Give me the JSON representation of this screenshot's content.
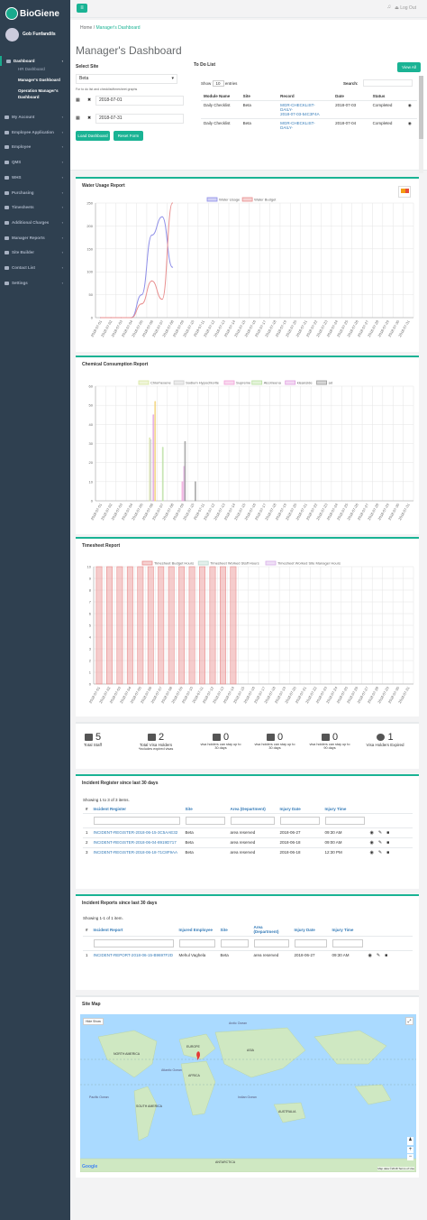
{
  "sidebar": {
    "logo_text": "BioGiene",
    "user": "Gob Funfandils",
    "items": [
      {
        "label": "Dashboard"
      },
      {
        "label": "My Account"
      },
      {
        "label": "Employee Application"
      },
      {
        "label": "Employee"
      },
      {
        "label": "QMS"
      },
      {
        "label": "WHS"
      },
      {
        "label": "Purchasing"
      },
      {
        "label": "Timesheets"
      },
      {
        "label": "Additional Charges"
      },
      {
        "label": "Manager Reports"
      },
      {
        "label": "Site Builder"
      },
      {
        "label": "Contact List"
      },
      {
        "label": "Settings"
      }
    ],
    "subitems": [
      {
        "label": "HR Dashboard"
      },
      {
        "label": "Manager's Dashboard"
      },
      {
        "label": "Operation Manager's"
      },
      {
        "label": "Dashboard"
      }
    ]
  },
  "topbar": {
    "logout": "Log Out"
  },
  "breadcrumb": {
    "home": "Home",
    "sep": "/",
    "current": "Manager's Dashboard"
  },
  "page_title": "Manager's Dashboard",
  "select_site": {
    "label": "Select Site",
    "value": "Beta",
    "hint": "For to do list and checklist/timesheet graphs",
    "date_from": "2018-07-01",
    "date_to": "2018-07-31",
    "load_btn": "Load Dashboard",
    "reset_btn": "Reset Form"
  },
  "todo": {
    "title": "To Do List",
    "view_all": "View All",
    "show": "Show",
    "entries_value": "10",
    "entries": "entries",
    "search": "Search:",
    "headers": [
      "Module Name",
      "Site",
      "Record",
      "Date",
      "Status"
    ],
    "rows": [
      {
        "module": "Daily Checklist",
        "site": "Beta",
        "record": [
          "MGR-CHECKLIST-",
          "DAILY-",
          "2018-07-03-54C3F4A"
        ],
        "date": "2018-07-03",
        "status": "Completed"
      },
      {
        "module": "Daily Checklist",
        "site": "Beta",
        "record": [
          "MGR-CHECKLIST-",
          "DAILY-"
        ],
        "date": "2018-07-04",
        "status": "Completed"
      }
    ]
  },
  "water_chart_title": "Water Usage Report",
  "chemical_chart_title": "Chemical Consumption Report",
  "timesheet_chart_title": "Timesheet Report",
  "stats": [
    {
      "icon": "users-icon",
      "value": "5",
      "label": "Total Staff",
      "sub": ""
    },
    {
      "icon": "folder-icon",
      "value": "2",
      "label": "Total Visa Holders",
      "sub": "*includes expired visas"
    },
    {
      "icon": "folder-open-icon",
      "value": "0",
      "label": "",
      "sub": "visa holders can stay up to 30 days"
    },
    {
      "icon": "folder-open-icon",
      "value": "0",
      "label": "",
      "sub": "visa holders can stay up to 30 days"
    },
    {
      "icon": "folder-open-icon",
      "value": "0",
      "label": "",
      "sub": "visa holders can stay up to 90 days"
    },
    {
      "icon": "ban-icon",
      "value": "1",
      "label": "Visa Holders Expired",
      "sub": ""
    }
  ],
  "incident_register": {
    "title": "Incident Register since last 30 days",
    "showing": "Showing 1 to 3 of 3 items.",
    "headers": [
      "#",
      "Incident Register",
      "Site",
      "Area (Department)",
      "Injury Date",
      "Injury Time"
    ],
    "rows": [
      {
        "n": "1",
        "id": "INCIDENT-REGISTER-2018-06-15-3C5AAE32",
        "site": "Beta",
        "area": "area reserved",
        "date": "2018-06-27",
        "time": "09:30 AM"
      },
      {
        "n": "2",
        "id": "INCIDENT-REGISTER-2018-06-04-8919D717",
        "site": "Beta",
        "area": "area reserved",
        "date": "2018-06-18",
        "time": "09:00 AM"
      },
      {
        "n": "3",
        "id": "INCIDENT-REGISTER-2018-06-18-71C8F9AA",
        "site": "Beta",
        "area": "area reserved",
        "date": "2018-06-18",
        "time": "12:30 PM"
      }
    ]
  },
  "incident_reports": {
    "title": "Incident Reports since last 30 days",
    "showing": "Showing 1-1 of 1 item.",
    "headers": [
      "#",
      "Incident Report",
      "Injured Employee",
      "Site",
      "Area (Department)",
      "Injury Date",
      "Injury Time"
    ],
    "rows": [
      {
        "n": "1",
        "id": "INCIDENT-REPORT-2018-06-15-B9697F2D",
        "employee": "Mehul Vaghela",
        "site": "Beta",
        "area": "area reserved",
        "date": "2018-06-27",
        "time": "09:30 AM"
      }
    ]
  },
  "site_map": {
    "title": "Site Map",
    "hide_show": "Hide  Show",
    "google": "Google",
    "attrib": "Map data ©2018   Terms of Use",
    "labels": [
      "NORTH AMERICA",
      "SOUTH AMERICA",
      "EUROPE",
      "AFRICA",
      "ASIA",
      "AUSTRALIA",
      "ANTARCTICA",
      "Atlantic Ocean",
      "Pacific Ocean",
      "Indian Ocean",
      "Arctic Ocean"
    ]
  },
  "charts": [
    {
      "type": "line",
      "x": [
        "2018-07-01",
        "2018-07-02",
        "2018-07-03",
        "2018-07-04",
        "2018-07-05",
        "2018-07-06",
        "2018-07-07",
        "2018-07-08",
        "2018-07-09",
        "2018-07-10",
        "2018-07-11",
        "2018-07-12",
        "2018-07-13",
        "2018-07-14",
        "2018-07-15",
        "2018-07-16",
        "2018-07-17",
        "2018-07-18",
        "2018-07-19",
        "2018-07-20",
        "2018-07-21",
        "2018-07-22",
        "2018-07-23",
        "2018-07-24",
        "2018-07-25",
        "2018-07-26",
        "2018-07-27",
        "2018-07-28",
        "2018-07-29",
        "2018-07-30",
        "2018-07-31"
      ],
      "ylim": [
        0,
        250
      ],
      "yticks": [
        0,
        50,
        100,
        150,
        200,
        250
      ],
      "series": [
        {
          "name": "Water Usage",
          "color": "#8e8ee8",
          "values": [
            0,
            0,
            0,
            0,
            50,
            180,
            220,
            110,
            null,
            null,
            null,
            null,
            null,
            null,
            null,
            null,
            null,
            null,
            null,
            null,
            null,
            null,
            null,
            null,
            null,
            null,
            null,
            null,
            null,
            null,
            null
          ]
        },
        {
          "name": "Water Budget",
          "color": "#e88e8e",
          "values": [
            0,
            0,
            0,
            0,
            30,
            80,
            40,
            250,
            null,
            null,
            null,
            null,
            null,
            null,
            null,
            null,
            null,
            null,
            null,
            null,
            null,
            null,
            null,
            null,
            null,
            null,
            null,
            null,
            null,
            null,
            null
          ]
        }
      ]
    },
    {
      "type": "bar",
      "x": [
        "2018-07-01",
        "2018-07-02",
        "2018-07-03",
        "2018-07-04",
        "2018-07-05",
        "2018-07-06",
        "2018-07-07",
        "2018-07-08",
        "2018-07-09",
        "2018-07-10",
        "2018-07-11",
        "2018-07-12",
        "2018-07-13",
        "2018-07-14",
        "2018-07-15",
        "2018-07-16",
        "2018-07-17",
        "2018-07-18",
        "2018-07-19",
        "2018-07-20",
        "2018-07-21",
        "2018-07-22",
        "2018-07-23",
        "2018-07-24",
        "2018-07-25",
        "2018-07-26",
        "2018-07-27",
        "2018-07-28",
        "2018-07-29",
        "2018-07-30",
        "2018-07-31"
      ],
      "ylim": [
        0,
        60
      ],
      "yticks": [
        0,
        10,
        20,
        30,
        40,
        50,
        60
      ],
      "series": [
        {
          "name": "Chlorhexene",
          "color": "#d8e6a0",
          "values": [
            0,
            0,
            0,
            0,
            0,
            33,
            0,
            0,
            0,
            0,
            0,
            0,
            0,
            0,
            0,
            0,
            0,
            0,
            0,
            0,
            0,
            0,
            0,
            0,
            0,
            0,
            0,
            0,
            0,
            0,
            0
          ]
        },
        {
          "name": "Sodium Hypochlorite",
          "color": "#cccccc",
          "values": [
            0,
            0,
            0,
            0,
            0,
            32,
            0,
            0,
            0,
            0,
            0,
            0,
            0,
            0,
            0,
            0,
            0,
            0,
            0,
            0,
            0,
            0,
            0,
            0,
            0,
            0,
            0,
            0,
            0,
            0,
            0
          ]
        },
        {
          "name": "Supreme",
          "color": "#f0a0d8",
          "values": [
            0,
            0,
            0,
            0,
            0,
            0,
            0,
            0,
            10,
            0,
            0,
            0,
            0,
            0,
            0,
            0,
            0,
            0,
            0,
            0,
            0,
            0,
            0,
            0,
            0,
            0,
            0,
            0,
            0,
            0,
            0
          ]
        },
        {
          "name": "Alcotreena",
          "color": "#b8e0a0",
          "values": [
            0,
            0,
            0,
            0,
            0,
            0,
            28,
            0,
            0,
            0,
            0,
            0,
            0,
            0,
            0,
            0,
            0,
            0,
            0,
            0,
            0,
            0,
            0,
            0,
            0,
            0,
            0,
            0,
            0,
            0,
            0
          ]
        },
        {
          "name": "kleanside",
          "color": "#e0a0e0",
          "values": [
            0,
            0,
            0,
            0,
            0,
            45,
            0,
            0,
            18,
            0,
            0,
            0,
            0,
            0,
            0,
            0,
            0,
            0,
            0,
            0,
            0,
            0,
            0,
            0,
            0,
            0,
            0,
            0,
            0,
            0,
            0
          ]
        },
        {
          "name": "ad",
          "color": "#999999",
          "values": [
            0,
            0,
            0,
            0,
            0,
            0,
            0,
            0,
            31,
            10,
            0,
            0,
            0,
            0,
            0,
            0,
            0,
            0,
            0,
            0,
            0,
            0,
            0,
            0,
            0,
            0,
            0,
            0,
            0,
            0,
            0
          ]
        },
        {
          "name": "",
          "color": "#f0d070",
          "values": [
            0,
            0,
            0,
            0,
            0,
            52,
            0,
            0,
            0,
            0,
            0,
            0,
            0,
            0,
            0,
            0,
            0,
            0,
            0,
            0,
            0,
            0,
            0,
            0,
            0,
            0,
            0,
            0,
            0,
            0,
            0
          ]
        }
      ]
    },
    {
      "type": "bar",
      "x": [
        "2018-07-01",
        "2018-07-02",
        "2018-07-03",
        "2018-07-04",
        "2018-07-05",
        "2018-07-06",
        "2018-07-07",
        "2018-07-08",
        "2018-07-09",
        "2018-07-10",
        "2018-07-11",
        "2018-07-12",
        "2018-07-13",
        "2018-07-14",
        "2018-07-15",
        "2018-07-16",
        "2018-07-17",
        "2018-07-18",
        "2018-07-19",
        "2018-07-20",
        "2018-07-21",
        "2018-07-22",
        "2018-07-23",
        "2018-07-24",
        "2018-07-25",
        "2018-07-26",
        "2018-07-27",
        "2018-07-28",
        "2018-07-29",
        "2018-07-30",
        "2018-07-31"
      ],
      "ylim": [
        0,
        10
      ],
      "yticks": [
        0,
        1,
        2,
        3,
        4,
        5,
        6,
        7,
        8,
        9,
        10
      ],
      "series": [
        {
          "name": "Timesheet Budget Hours",
          "color": "#e88e8e",
          "values": [
            10,
            10,
            10,
            10,
            10,
            10,
            10,
            10,
            10,
            10,
            10,
            10,
            10,
            10,
            0,
            0,
            0,
            0,
            0,
            0,
            0,
            0,
            0,
            0,
            0,
            0,
            0,
            0,
            0,
            0,
            0
          ]
        },
        {
          "name": "Timesheet Worked Staff Hours",
          "color": "#bcd9d0",
          "values": [
            0,
            0,
            0,
            0,
            0,
            0,
            0,
            0,
            0,
            0,
            0,
            0,
            0,
            0,
            0,
            0,
            0,
            0,
            0,
            0,
            0,
            0,
            0,
            0,
            0,
            0,
            0,
            0,
            0,
            0,
            0
          ]
        },
        {
          "name": "Timesheet Worked Site Manager Hours",
          "color": "#d8b0e8",
          "values": [
            0,
            0,
            0,
            0,
            0,
            0,
            0,
            0,
            0,
            0,
            0,
            0,
            0,
            0,
            0,
            0,
            0,
            0,
            0,
            0,
            0,
            0,
            0,
            0,
            0,
            0,
            0,
            0,
            0,
            0,
            0
          ]
        }
      ]
    }
  ],
  "colors": {
    "accent": "#1ab394",
    "sidebar": "#2f4050",
    "link": "#337ab7"
  }
}
